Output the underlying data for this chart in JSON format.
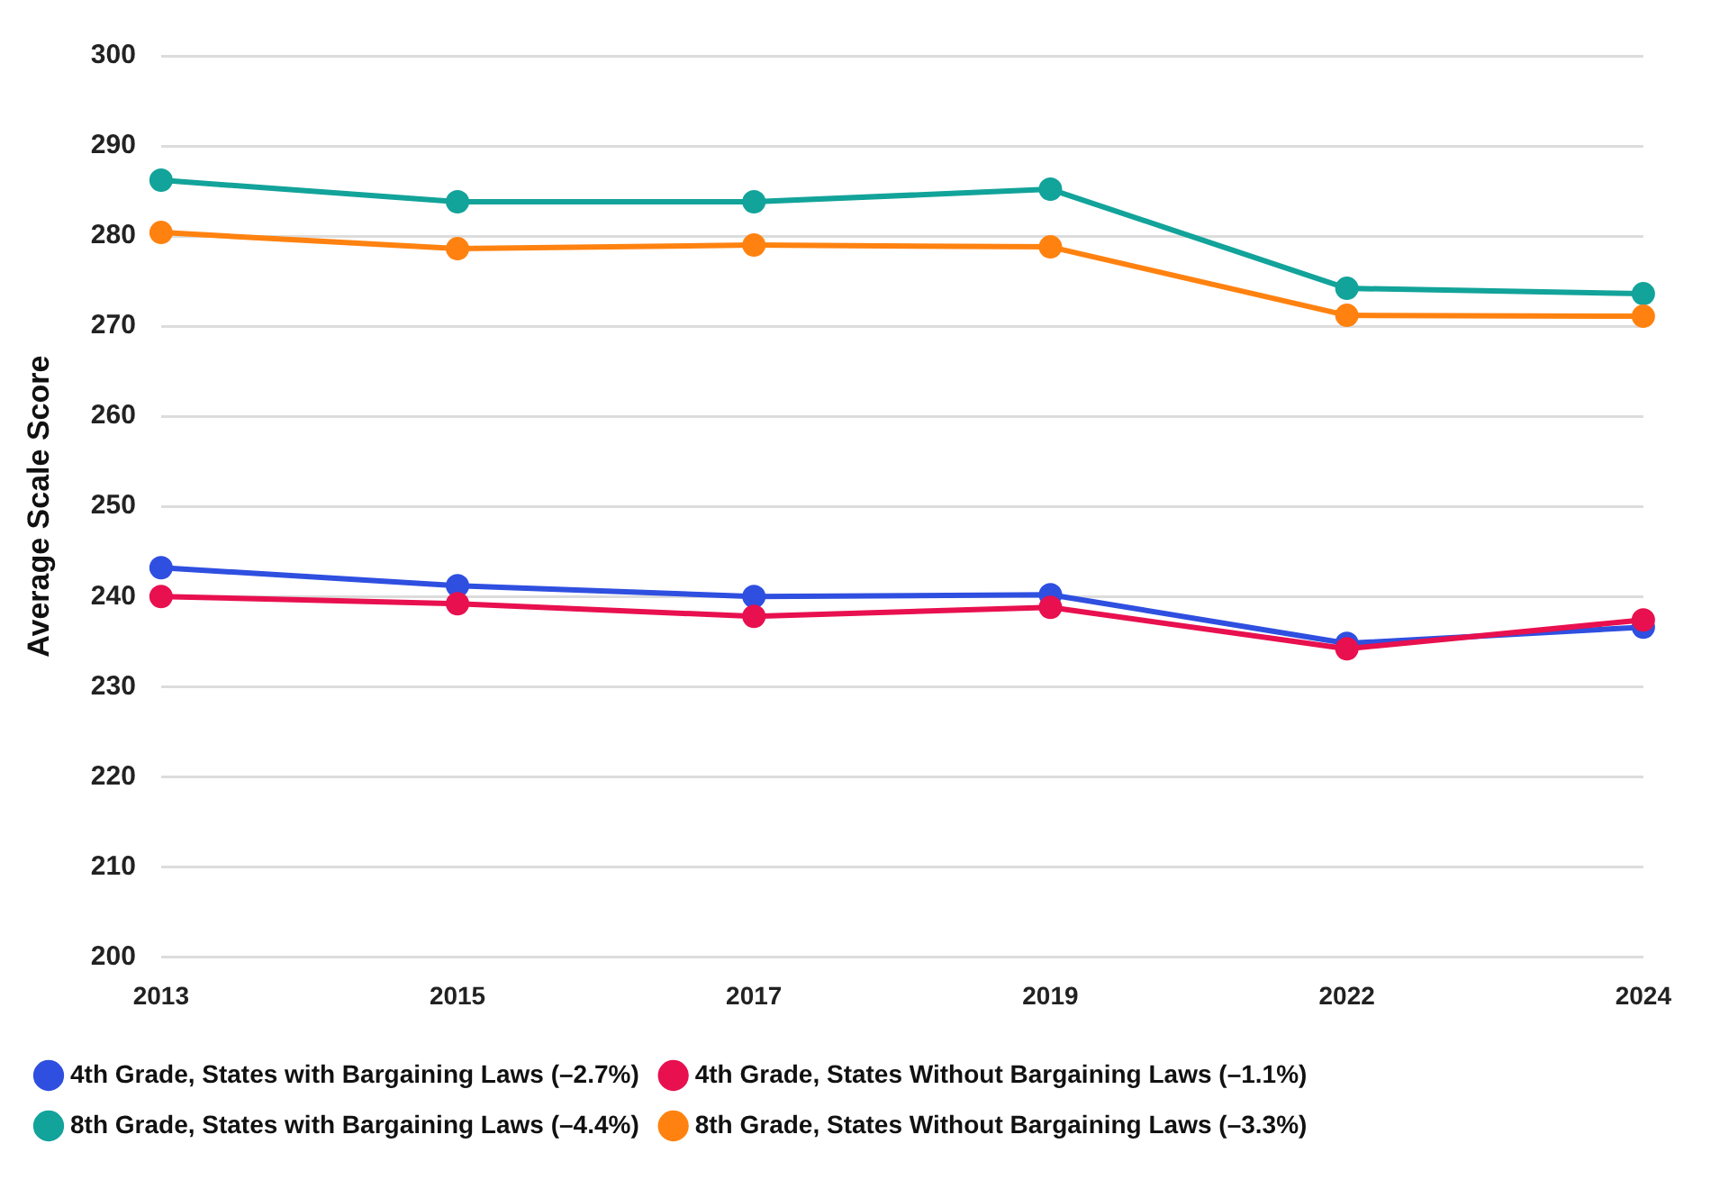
{
  "chart_data": {
    "type": "line",
    "ylabel": "Average Scale Score",
    "categories": [
      "2013",
      "2015",
      "2017",
      "2019",
      "2022",
      "2024"
    ],
    "series": [
      {
        "name": "4th Grade, States with Bargaining Laws (–2.7%)",
        "color": "#2f4fe0",
        "values": [
          243.2,
          241.2,
          240,
          240.2,
          234.8,
          236.6
        ]
      },
      {
        "name": "4th Grade, States Without Bargaining Laws (–1.1%)",
        "color": "#e8104f",
        "values": [
          240,
          239.2,
          237.8,
          238.8,
          234.2,
          237.4
        ]
      },
      {
        "name": "8th Grade, States with Bargaining Laws (–4.4%)",
        "color": "#12a39a",
        "values": [
          286.2,
          283.8,
          283.8,
          285.2,
          274.2,
          273.6
        ]
      },
      {
        "name": "8th Grade, States Without Bargaining Laws (–3.3%)",
        "color": "#ff8210",
        "values": [
          280.4,
          278.6,
          279,
          278.8,
          271.2,
          271.1
        ]
      }
    ],
    "ylim": [
      200,
      300
    ],
    "yticks": [
      200,
      210,
      220,
      230,
      240,
      250,
      260,
      270,
      280,
      290,
      300
    ],
    "grid": "y",
    "legend": "bottom",
    "marker": "circle",
    "line_style": "solid"
  }
}
